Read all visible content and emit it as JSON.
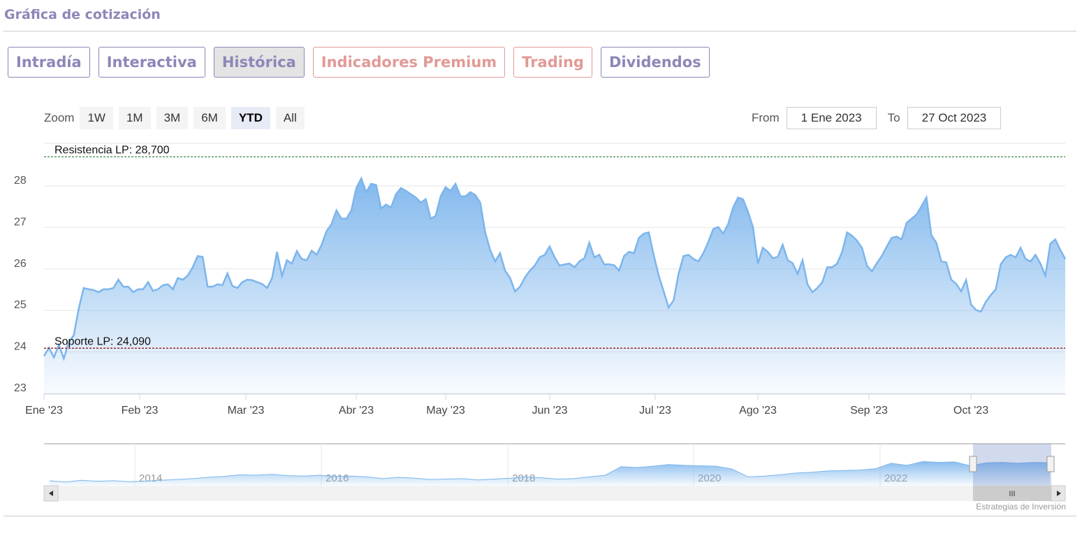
{
  "header": {
    "title": "Gráfica de cotización"
  },
  "tabs": [
    {
      "label": "Intradía",
      "style": "purple"
    },
    {
      "label": "Interactiva",
      "style": "purple"
    },
    {
      "label": "Histórica",
      "style": "active"
    },
    {
      "label": "Indicadores Premium",
      "style": "red"
    },
    {
      "label": "Trading",
      "style": "red"
    },
    {
      "label": "Dividendos",
      "style": "purple"
    }
  ],
  "zoom": {
    "label": "Zoom",
    "buttons": [
      "1W",
      "1M",
      "3M",
      "6M",
      "YTD",
      "All"
    ],
    "selected": "YTD"
  },
  "range": {
    "from_label": "From",
    "from": "1 Ene 2023",
    "to_label": "To",
    "to": "27 Oct 2023"
  },
  "credit": "Estrategias de Inversión",
  "colors": {
    "line": "#7cb5ec",
    "resistance": "#2e7d32",
    "support": "#8b0000",
    "purple": "#8c87b8",
    "red": "#e19a96"
  },
  "chart_data": {
    "type": "area",
    "xlim": [
      "1 Ene 2023",
      "27 Oct 2023"
    ],
    "ylim": [
      23,
      28.7
    ],
    "yticks": [
      23,
      24,
      25,
      26,
      27,
      28
    ],
    "xticks": [
      "Ene '23",
      "Feb '23",
      "Mar '23",
      "Abr '23",
      "May '23",
      "Jun '23",
      "Jul '23",
      "Ago '23",
      "Sep '23",
      "Oct '23"
    ],
    "grid": true,
    "plotlines": [
      {
        "label": "Resistencia LP: 28,700",
        "value": 28.7,
        "color": "#2e7d32"
      },
      {
        "label": "Soporte LP: 24,090",
        "value": 24.09,
        "color": "#8b0000"
      }
    ],
    "values": [
      23.9,
      24.1,
      23.87,
      24.17,
      23.84,
      24.24,
      24.4,
      25.04,
      25.54,
      25.51,
      25.49,
      25.44,
      25.51,
      25.51,
      25.54,
      25.74,
      25.57,
      25.57,
      25.44,
      25.51,
      25.51,
      25.68,
      25.47,
      25.51,
      25.61,
      25.63,
      25.51,
      25.78,
      25.74,
      25.84,
      26.04,
      26.31,
      26.29,
      25.57,
      25.57,
      25.63,
      25.61,
      25.89,
      25.59,
      25.54,
      25.68,
      25.74,
      25.73,
      25.68,
      25.64,
      25.54,
      25.78,
      26.41,
      25.83,
      26.21,
      26.13,
      26.43,
      26.24,
      26.21,
      26.44,
      26.34,
      26.58,
      26.91,
      27.08,
      27.41,
      27.21,
      27.21,
      27.41,
      27.95,
      28.18,
      27.85,
      28.05,
      28.02,
      27.46,
      27.55,
      27.48,
      27.8,
      27.95,
      27.88,
      27.8,
      27.72,
      27.6,
      27.68,
      27.21,
      27.28,
      27.75,
      27.97,
      27.88,
      28.05,
      27.75,
      27.75,
      27.85,
      27.78,
      27.6,
      26.88,
      26.46,
      26.18,
      26.38,
      25.96,
      25.79,
      25.46,
      25.57,
      25.79,
      25.96,
      26.08,
      26.28,
      26.34,
      26.54,
      26.28,
      26.08,
      26.11,
      26.13,
      26.04,
      26.18,
      26.26,
      26.63,
      26.28,
      26.34,
      26.11,
      26.11,
      26.09,
      25.96,
      26.31,
      26.41,
      26.38,
      26.75,
      26.85,
      26.88,
      26.33,
      25.84,
      25.46,
      25.07,
      25.24,
      25.88,
      26.31,
      26.34,
      26.24,
      26.18,
      26.38,
      26.65,
      26.96,
      27.01,
      26.85,
      27.08,
      27.48,
      27.72,
      27.68,
      27.38,
      27.01,
      26.13,
      26.51,
      26.41,
      26.26,
      26.29,
      26.58,
      26.21,
      26.14,
      25.88,
      26.21,
      25.63,
      25.44,
      25.54,
      25.68,
      26.04,
      26.04,
      26.13,
      26.41,
      26.88,
      26.8,
      26.68,
      26.51,
      26.08,
      25.94,
      26.14,
      26.31,
      26.54,
      26.75,
      26.78,
      26.71,
      27.11,
      27.21,
      27.31,
      27.51,
      27.72,
      26.81,
      26.63,
      26.18,
      26.16,
      25.74,
      25.64,
      25.46,
      25.73,
      25.14,
      25.01,
      24.97,
      25.21,
      25.37,
      25.51,
      26.11,
      26.28,
      26.34,
      26.28,
      26.51,
      26.24,
      26.18,
      26.34,
      26.13,
      25.84,
      26.61,
      26.71,
      26.46,
      26.24
    ]
  },
  "navigator": {
    "xticks": [
      "2014",
      "2016",
      "2018",
      "2020",
      "2022"
    ],
    "values": [
      20.5,
      20.2,
      20.6,
      20.4,
      20.5,
      20.3,
      20.4,
      20.6,
      20.8,
      21.0,
      21.3,
      21.5,
      21.9,
      21.8,
      22.0,
      21.7,
      21.6,
      21.8,
      21.5,
      21.6,
      21.4,
      21.0,
      21.3,
      21.1,
      20.8,
      20.9,
      21.0,
      20.7,
      20.9,
      21.1,
      21.4,
      21.2,
      20.9,
      21.0,
      21.4,
      21.8,
      23.8,
      23.6,
      23.9,
      24.3,
      24.1,
      24.0,
      23.9,
      23.2,
      21.4,
      21.6,
      21.9,
      22.3,
      22.5,
      22.8,
      22.9,
      23.0,
      23.3,
      24.6,
      24.1,
      25.0,
      24.8,
      24.9,
      24.0,
      24.7,
      24.8,
      24.6,
      24.8,
      24.7
    ]
  }
}
